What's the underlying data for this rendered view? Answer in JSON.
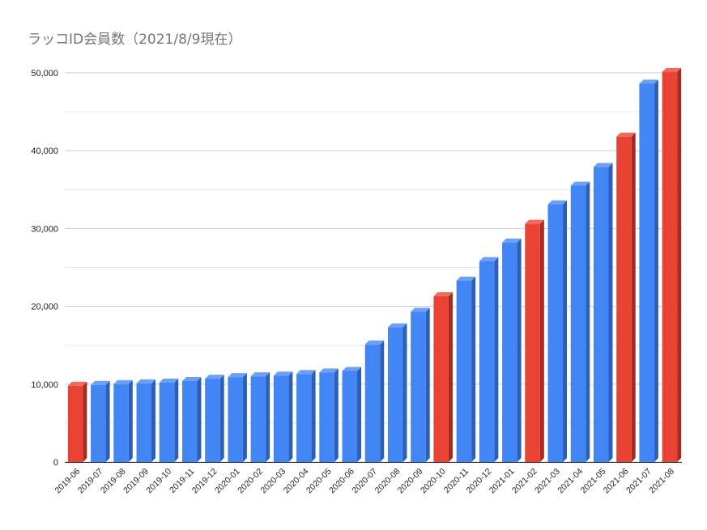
{
  "chart_data": {
    "type": "bar",
    "title": "ラッコID会員数（2021/8/9現在）",
    "xlabel": "",
    "ylabel": "",
    "ylim": [
      0,
      50000
    ],
    "yticks": [
      0,
      10000,
      20000,
      30000,
      40000,
      50000
    ],
    "ytick_labels": [
      "0",
      "10,000",
      "20,000",
      "30,000",
      "40,000",
      "50,000"
    ],
    "grid": true,
    "legend": "none",
    "categories": [
      "2019-06",
      "2019-07",
      "2019-08",
      "2019-09",
      "2019-10",
      "2019-11",
      "2019-12",
      "2020-01",
      "2020-02",
      "2020-03",
      "2020-04",
      "2020-05",
      "2020-06",
      "2020-07",
      "2020-08",
      "2020-09",
      "2020-10",
      "2020-11",
      "2020-12",
      "2021-01",
      "2021-02",
      "2021-03",
      "2021-04",
      "2021-05",
      "2021-06",
      "2021-07",
      "2021-08"
    ],
    "values": [
      9800,
      9900,
      10000,
      10100,
      10200,
      10400,
      10700,
      10900,
      11000,
      11100,
      11300,
      11500,
      11700,
      15100,
      17300,
      19300,
      21300,
      23300,
      25800,
      28200,
      30600,
      33100,
      35500,
      37900,
      41800,
      48600,
      50100
    ],
    "highlighted": [
      "2019-06",
      "2020-10",
      "2021-02",
      "2021-06",
      "2021-08"
    ],
    "colors": {
      "bar": "#4285f4",
      "bar_side": "#2d5fb8",
      "bar_top": "#6aa0f7",
      "highlight": "#ea4335",
      "highlight_side": "#a52a20",
      "highlight_top": "#f06a5e",
      "grid": "#cccccc",
      "title": "#757575"
    }
  }
}
